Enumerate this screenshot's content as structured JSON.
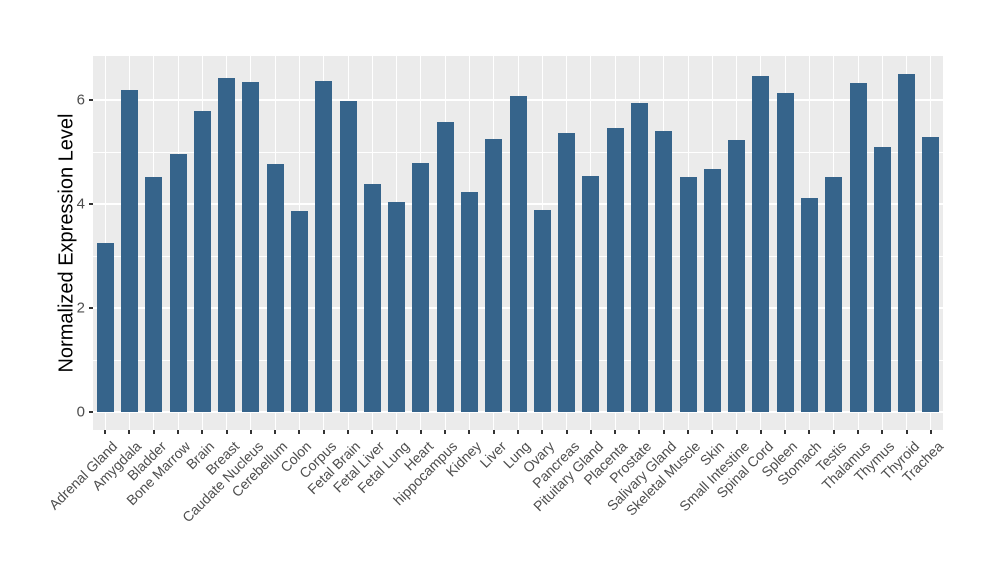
{
  "chart_data": {
    "type": "bar",
    "title": "",
    "xlabel": "",
    "ylabel": "Normalized Expression Level",
    "categories": [
      "Adrenal Gland",
      "Amygdala",
      "Bladder",
      "Bone Marrow",
      "Brain",
      "Breast",
      "Caudate Nucleus",
      "Cerebellum",
      "Colon",
      "Corpus",
      "Fetal Brain",
      "Fetal Liver",
      "Fetal Lung",
      "Heart",
      "hippocampus",
      "Kidney",
      "Liver",
      "Lung",
      "Ovary",
      "Pancreas",
      "Pituitary Gland",
      "Placenta",
      "Prostate",
      "Salivary Gland",
      "Skeletal Muscle",
      "Skin",
      "Small Intestine",
      "Spinal Cord",
      "Spleen",
      "Stomach",
      "Testis",
      "Thalamus",
      "Thymus",
      "Thyroid",
      "Trachea"
    ],
    "values": [
      3.24,
      6.18,
      4.51,
      4.95,
      5.78,
      6.42,
      6.34,
      4.76,
      3.85,
      6.36,
      5.97,
      4.38,
      4.04,
      4.79,
      5.57,
      4.23,
      5.25,
      6.07,
      3.87,
      5.36,
      4.54,
      5.46,
      5.93,
      5.39,
      4.51,
      4.67,
      5.22,
      6.45,
      6.12,
      4.11,
      4.51,
      6.31,
      5.09,
      6.49,
      5.28
    ],
    "yticks": [
      0,
      2,
      4,
      6
    ],
    "minor_gridlines": [
      1,
      3,
      5
    ],
    "ylim": [
      -0.35,
      6.84
    ],
    "grid": "on",
    "legend_position": "none",
    "x_label_rotation_deg": 45,
    "colors": {
      "bar": "#36648B",
      "panel_background": "#EBEBEB",
      "gridline": "#FFFFFF",
      "axis_text": "#4D4D4D",
      "axis_title": "#000000",
      "figure_background": "#FFFFFF"
    }
  }
}
